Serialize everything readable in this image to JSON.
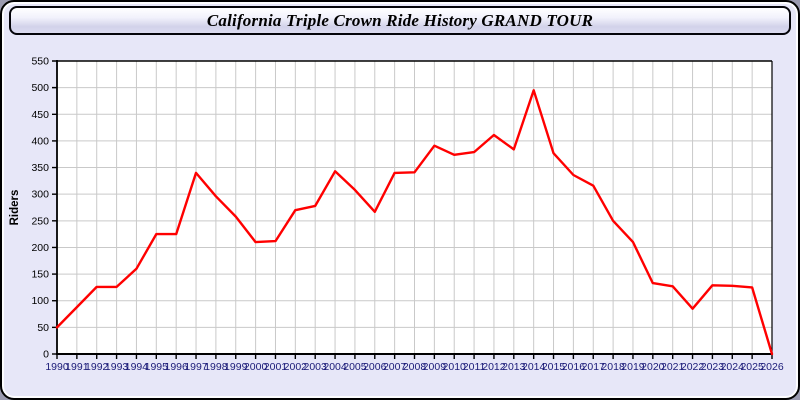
{
  "window": {
    "title": "California Triple Crown Ride History GRAND TOUR"
  },
  "chart_data": {
    "type": "line",
    "title": "California Triple Crown Ride History GRAND TOUR",
    "xlabel": "",
    "ylabel": "Riders",
    "x": [
      1990,
      1991,
      1992,
      1993,
      1994,
      1995,
      1996,
      1997,
      1998,
      1999,
      2000,
      2001,
      2002,
      2003,
      2004,
      2005,
      2006,
      2007,
      2008,
      2009,
      2010,
      2011,
      2012,
      2013,
      2014,
      2015,
      2016,
      2017,
      2018,
      2019,
      2020,
      2021,
      2022,
      2023,
      2024,
      2025,
      2026
    ],
    "series": [
      {
        "name": "Riders",
        "values": [
          50,
          88,
          126,
          126,
          160,
          225,
          225,
          340,
          296,
          258,
          210,
          212,
          270,
          278,
          343,
          308,
          267,
          340,
          341,
          391,
          374,
          379,
          411,
          384,
          495,
          377,
          336,
          316,
          250,
          210,
          133,
          127,
          85,
          129,
          128,
          125,
          0
        ]
      }
    ],
    "ylim": [
      0,
      550
    ],
    "yticks": [
      0,
      50,
      100,
      150,
      200,
      250,
      300,
      350,
      400,
      450,
      500,
      550
    ],
    "grid": true,
    "legend": "none",
    "colors": {
      "line": "#ff0000",
      "grid": "#c9c9c9",
      "plot_bg": "#ffffff",
      "axis": "#000000",
      "xtick_label": "#1b1b78",
      "window_bg": "#e7e7f8"
    }
  }
}
